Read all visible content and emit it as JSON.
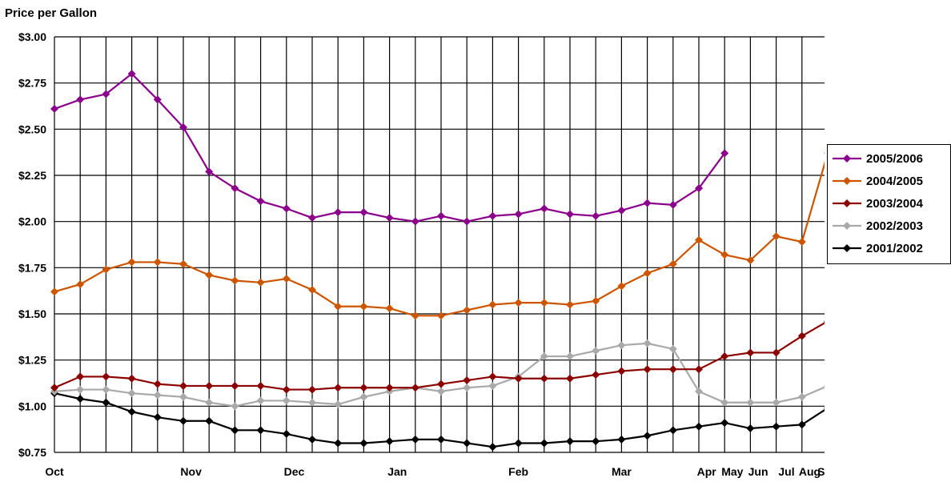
{
  "chart_data": {
    "type": "line",
    "title": "Price per Gallon",
    "ylim": [
      0.75,
      3.0
    ],
    "y_ticks": [
      "$0.75",
      "$1.00",
      "$1.25",
      "$1.50",
      "$1.75",
      "$2.00",
      "$2.25",
      "$2.50",
      "$2.75",
      "$3.00"
    ],
    "x_month_labels": [
      "Oct",
      "Nov",
      "Dec",
      "Jan",
      "Feb",
      "Mar",
      "Apr",
      "May",
      "Jun",
      "Jul",
      "Aug",
      "Sep"
    ],
    "grid": true,
    "legend_position": "right",
    "series": [
      {
        "name": "2005/2006",
        "color": "#8B008B",
        "values": [
          2.61,
          2.66,
          2.69,
          2.8,
          2.66,
          2.51,
          2.27,
          2.18,
          2.11,
          2.07,
          2.02,
          2.05,
          2.05,
          2.02,
          2.0,
          2.03,
          2.0,
          2.03,
          2.04,
          2.07,
          2.04,
          2.03,
          2.06,
          2.1,
          2.09,
          2.18,
          2.37
        ]
      },
      {
        "name": "2004/2005",
        "color": "#CC5500",
        "values": [
          1.62,
          1.66,
          1.74,
          1.78,
          1.78,
          1.77,
          1.71,
          1.68,
          1.67,
          1.69,
          1.63,
          1.54,
          1.54,
          1.53,
          1.49,
          1.49,
          1.52,
          1.55,
          1.56,
          1.56,
          1.55,
          1.57,
          1.65,
          1.72,
          1.77,
          1.9,
          1.82,
          1.79,
          1.92,
          1.89,
          2.37
        ]
      },
      {
        "name": "2003/2004",
        "color": "#8B0000",
        "values": [
          1.1,
          1.16,
          1.16,
          1.15,
          1.12,
          1.11,
          1.11,
          1.11,
          1.11,
          1.09,
          1.09,
          1.1,
          1.1,
          1.1,
          1.1,
          1.12,
          1.14,
          1.16,
          1.15,
          1.15,
          1.15,
          1.17,
          1.19,
          1.2,
          1.2,
          1.2,
          1.27,
          1.29,
          1.29,
          1.38,
          1.46
        ]
      },
      {
        "name": "2002/2003",
        "color": "#A9A9A9",
        "values": [
          1.08,
          1.09,
          1.09,
          1.07,
          1.06,
          1.05,
          1.02,
          1.0,
          1.03,
          1.03,
          1.02,
          1.01,
          1.05,
          1.08,
          1.1,
          1.08,
          1.1,
          1.11,
          1.16,
          1.27,
          1.27,
          1.3,
          1.33,
          1.34,
          1.31,
          1.08,
          1.02,
          1.02,
          1.02,
          1.05,
          1.11
        ]
      },
      {
        "name": "2001/2002",
        "color": "#000000",
        "values": [
          1.07,
          1.04,
          1.02,
          0.97,
          0.94,
          0.92,
          0.92,
          0.87,
          0.87,
          0.85,
          0.82,
          0.8,
          0.8,
          0.81,
          0.82,
          0.82,
          0.8,
          0.78,
          0.8,
          0.8,
          0.81,
          0.81,
          0.82,
          0.84,
          0.87,
          0.89,
          0.91,
          0.88,
          0.89,
          0.9,
          0.99
        ]
      }
    ]
  }
}
